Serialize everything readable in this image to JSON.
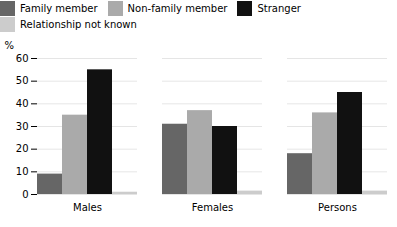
{
  "chart_data": {
    "type": "bar",
    "categories": [
      "Males",
      "Females",
      "Persons"
    ],
    "series": [
      {
        "name": "Family member",
        "color": "#666666",
        "values": [
          9,
          31,
          18
        ]
      },
      {
        "name": "Non-family member",
        "color": "#aaaaaa",
        "values": [
          35,
          37,
          36
        ]
      },
      {
        "name": "Stranger",
        "color": "#111111",
        "values": [
          55,
          30,
          45
        ]
      },
      {
        "name": "Relationship not known",
        "color": "#cccccc",
        "values": [
          1,
          1.5,
          1.5
        ]
      }
    ],
    "ylabel": "%",
    "ylim": [
      0,
      60
    ],
    "yticks": [
      0,
      10,
      20,
      30,
      40,
      50,
      60
    ],
    "grid": true,
    "legend": "top"
  }
}
